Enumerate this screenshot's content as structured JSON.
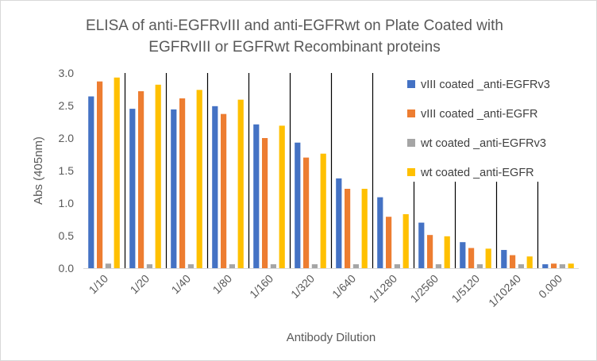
{
  "chart_data": {
    "type": "bar",
    "title_lines": [
      "ELISA of anti-EGFRvIII and anti-EGFRwt on Plate Coated with",
      "EGFRvIII or EGFRwt Recombinant proteins"
    ],
    "xlabel": "Antibody Dilution",
    "ylabel": "Abs (405nm)",
    "ylim": [
      0,
      3.0
    ],
    "yticks": [
      "0.0",
      "0.5",
      "1.0",
      "1.5",
      "2.0",
      "2.5",
      "3.0"
    ],
    "categories": [
      "1/10",
      "1/20",
      "1/40",
      "1/80",
      "1/160",
      "1/320",
      "1/640",
      "1/1280",
      "1/2560",
      "1/5120",
      "1/10240",
      "0.000"
    ],
    "series": [
      {
        "name": "vIII coated _anti-EGFRv3",
        "color": "#4472c4",
        "values": [
          2.64,
          2.45,
          2.44,
          2.49,
          2.21,
          1.93,
          1.38,
          1.09,
          0.7,
          0.4,
          0.28,
          0.06
        ]
      },
      {
        "name": "vIII coated _anti-EGFR",
        "color": "#ed7d31",
        "values": [
          2.87,
          2.72,
          2.61,
          2.37,
          2.0,
          1.7,
          1.22,
          0.79,
          0.51,
          0.31,
          0.2,
          0.07
        ]
      },
      {
        "name": "wt coated _anti-EGFRv3",
        "color": "#a5a5a5",
        "values": [
          0.07,
          0.06,
          0.06,
          0.06,
          0.06,
          0.06,
          0.06,
          0.06,
          0.06,
          0.06,
          0.06,
          0.06
        ]
      },
      {
        "name": "wt coated _anti-EGFR",
        "color": "#ffc000",
        "values": [
          2.93,
          2.82,
          2.74,
          2.59,
          2.19,
          1.76,
          1.22,
          0.83,
          0.49,
          0.3,
          0.18,
          0.07
        ]
      }
    ],
    "grid": false,
    "category_separators": true,
    "legend_position": "top-right"
  }
}
